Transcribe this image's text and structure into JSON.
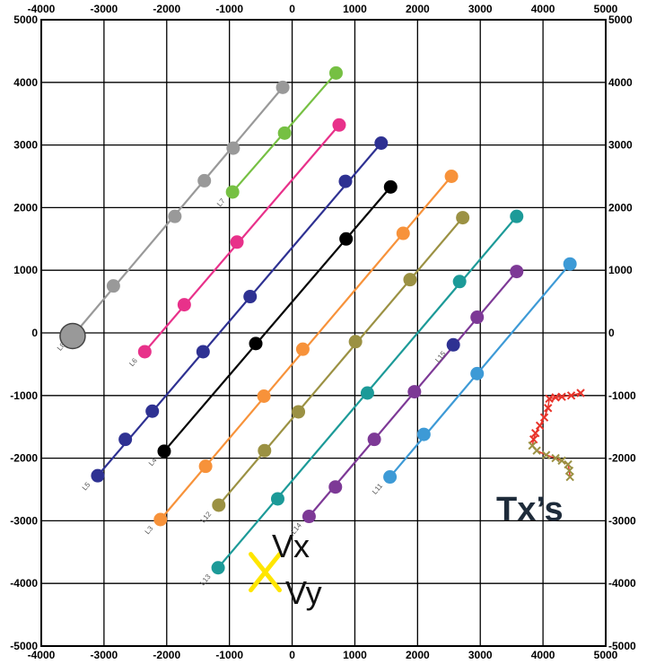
{
  "chart_data": {
    "type": "scatter",
    "xlim": [
      -4000,
      5000
    ],
    "ylim": [
      -5000,
      5000
    ],
    "x_ticks": [
      -4000,
      -3000,
      -2000,
      -1000,
      0,
      1000,
      2000,
      3000,
      4000,
      5000
    ],
    "y_ticks": [
      -5000,
      -4000,
      -3000,
      -2000,
      -1000,
      0,
      1000,
      2000,
      3000,
      4000,
      5000
    ],
    "x_tick_labels": [
      "-4000",
      "-3000",
      "-2000",
      "-1000",
      "0",
      "1000",
      "2000",
      "3000",
      "4000",
      "5000"
    ],
    "y_tick_labels": [
      "-5000",
      "-4000",
      "-3000",
      "-2000",
      "-1000",
      "0",
      "1000",
      "2000",
      "3000",
      "4000",
      "5000"
    ],
    "grid": true,
    "series": [
      {
        "name": "L8",
        "color": "#999999",
        "start": [
          -3500,
          -50
        ],
        "end": [
          -150,
          3920
        ],
        "points": [
          [
            -3500,
            -50
          ],
          [
            -2850,
            750
          ],
          [
            -1870,
            1860
          ],
          [
            -1400,
            2430
          ],
          [
            -940,
            2950
          ],
          [
            -150,
            3920
          ]
        ]
      },
      {
        "name": "L7",
        "color": "#76c043",
        "start": [
          -950,
          2250
        ],
        "end": [
          700,
          4150
        ],
        "points": [
          [
            -950,
            2250
          ],
          [
            -120,
            3190
          ],
          [
            700,
            4150
          ]
        ]
      },
      {
        "name": "L6",
        "color": "#e8318a",
        "start": [
          -2350,
          -300
        ],
        "end": [
          750,
          3320
        ],
        "points": [
          [
            -2350,
            -300
          ],
          [
            -1720,
            450
          ],
          [
            -880,
            1450
          ],
          [
            750,
            3320
          ]
        ]
      },
      {
        "name": "L5",
        "color": "#2e3192",
        "start": [
          -3100,
          -2280
        ],
        "end": [
          1420,
          3030
        ],
        "points": [
          [
            -3100,
            -2280
          ],
          [
            -2660,
            -1700
          ],
          [
            -2230,
            -1250
          ],
          [
            -1420,
            -300
          ],
          [
            -670,
            580
          ],
          [
            850,
            2420
          ],
          [
            1420,
            3030
          ]
        ]
      },
      {
        "name": "L4",
        "color": "#000000",
        "start": [
          -2040,
          -1890
        ],
        "end": [
          1570,
          2330
        ],
        "points": [
          [
            -2040,
            -1890
          ],
          [
            -580,
            -170
          ],
          [
            860,
            1500
          ],
          [
            1570,
            2330
          ]
        ]
      },
      {
        "name": "L3",
        "color": "#f7923a",
        "start": [
          -2100,
          -2980
        ],
        "end": [
          2540,
          2500
        ],
        "points": [
          [
            -2100,
            -2980
          ],
          [
            -1380,
            -2130
          ],
          [
            -450,
            -1010
          ],
          [
            170,
            -260
          ],
          [
            1770,
            1590
          ],
          [
            2540,
            2500
          ]
        ]
      },
      {
        "name": "L12",
        "color": "#9b9143",
        "start": [
          -1170,
          -2750
        ],
        "end": [
          2720,
          1840
        ],
        "points": [
          [
            -1170,
            -2750
          ],
          [
            -440,
            -1880
          ],
          [
            100,
            -1260
          ],
          [
            1010,
            -140
          ],
          [
            1880,
            850
          ],
          [
            2720,
            1840
          ]
        ]
      },
      {
        "name": "L13",
        "color": "#1c9a98",
        "start": [
          -1180,
          -3750
        ],
        "end": [
          3580,
          1860
        ],
        "points": [
          [
            -1180,
            -3750
          ],
          [
            -230,
            -2650
          ],
          [
            1200,
            -960
          ],
          [
            2670,
            820
          ],
          [
            3580,
            1860
          ]
        ]
      },
      {
        "name": "L14",
        "color": "#7d3996",
        "start": [
          270,
          -2930
        ],
        "end": [
          3580,
          980
        ],
        "points": [
          [
            270,
            -2930
          ],
          [
            690,
            -2460
          ],
          [
            1310,
            -1700
          ],
          [
            1950,
            -940
          ],
          [
            2950,
            250
          ],
          [
            3580,
            980
          ]
        ]
      },
      {
        "name": "L15",
        "color": "#2e3192",
        "start": [
          2570,
          -190
        ],
        "end": [
          2570,
          -190
        ],
        "points": [
          [
            2570,
            -190
          ]
        ]
      },
      {
        "name": "L11",
        "color": "#3d9ad6",
        "start": [
          1560,
          -2300
        ],
        "end": [
          4430,
          1100
        ],
        "points": [
          [
            1560,
            -2300
          ],
          [
            2100,
            -1620
          ],
          [
            2950,
            -650
          ],
          [
            4430,
            1100
          ]
        ]
      }
    ],
    "tx_color": "#e8332a",
    "tx_points": [
      [
        4600,
        -960
      ],
      [
        4450,
        -1000
      ],
      [
        4300,
        -1020
      ],
      [
        4200,
        -1030
      ],
      [
        4100,
        -1050
      ],
      [
        4080,
        -1200
      ],
      [
        4020,
        -1350
      ],
      [
        3950,
        -1480
      ],
      [
        3880,
        -1600
      ],
      [
        3850,
        -1700
      ],
      [
        3830,
        -1800
      ],
      [
        3900,
        -1880
      ],
      [
        4050,
        -1950
      ],
      [
        4200,
        -2000
      ],
      [
        4300,
        -2040
      ],
      [
        4400,
        -2100
      ],
      [
        4420,
        -2200
      ],
      [
        4430,
        -2300
      ]
    ],
    "tx_label": "Tx’s",
    "vx_label": "Vx",
    "vy_label": "Vy",
    "vxy_marker": [
      -430,
      -3820
    ],
    "vxy_color": "#ffe600"
  }
}
